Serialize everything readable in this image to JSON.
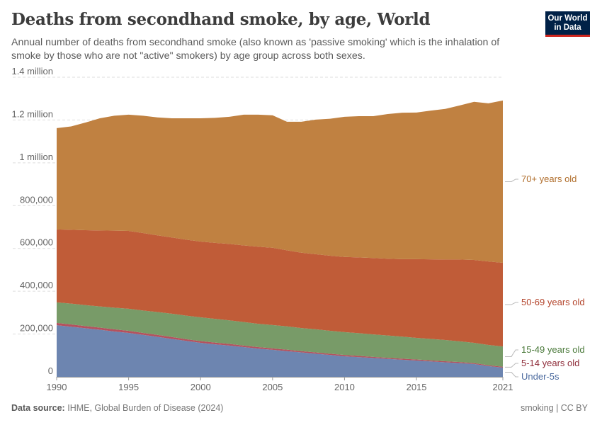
{
  "header": {
    "title": "Deaths from secondhand smoke, by age, World",
    "subtitle": "Annual number of deaths from secondhand smoke (also known as 'passive smoking' which is the inhalation of smoke by those who are not \"active\" smokers) by age group across both sexes.",
    "logo_line1": "Our World",
    "logo_line2": "in Data"
  },
  "footer": {
    "source_label": "Data source:",
    "source_text": "IHME, Global Burden of Disease (2024)",
    "right_text": "smoking | CC BY"
  },
  "chart_data": {
    "type": "area",
    "stacked": true,
    "title": "Deaths from secondhand smoke, by age, World",
    "xlabel": "",
    "ylabel": "",
    "xlim": [
      1990,
      2021
    ],
    "ylim": [
      0,
      1400000
    ],
    "grid": true,
    "legend": "right (inline labels)",
    "x_ticks": [
      "1990",
      "1995",
      "2000",
      "2005",
      "2010",
      "2015",
      "2021"
    ],
    "x_tick_values": [
      1990,
      1995,
      2000,
      2005,
      2010,
      2015,
      2021
    ],
    "y_ticks": [
      "0",
      "200,000",
      "400,000",
      "600,000",
      "800,000",
      "1 million",
      "1.2 million",
      "1.4 million"
    ],
    "y_tick_values": [
      0,
      200000,
      400000,
      600000,
      800000,
      1000000,
      1200000,
      1400000
    ],
    "x": [
      1990,
      1991,
      1992,
      1993,
      1994,
      1995,
      1996,
      1997,
      1998,
      1999,
      2000,
      2001,
      2002,
      2003,
      2004,
      2005,
      2006,
      2007,
      2008,
      2009,
      2010,
      2011,
      2012,
      2013,
      2014,
      2015,
      2016,
      2017,
      2018,
      2019,
      2020,
      2021
    ],
    "series": [
      {
        "name": "Under-5s",
        "color": "#6d85b0",
        "label_color": "#4b6a9e",
        "values": [
          241000,
          234000,
          227000,
          220000,
          212000,
          205000,
          196000,
          187000,
          177000,
          168000,
          159000,
          152000,
          146000,
          139000,
          132000,
          126000,
          120000,
          114000,
          108000,
          102000,
          96000,
          92000,
          88000,
          84000,
          80000,
          76000,
          72000,
          68000,
          64000,
          60000,
          50000,
          43000
        ]
      },
      {
        "name": "5-14 years old",
        "color": "#b4515e",
        "label_color": "#8e2b38",
        "values": [
          11000,
          11000,
          10000,
          10000,
          10000,
          10000,
          9000,
          9000,
          9000,
          8000,
          8000,
          8000,
          8000,
          7000,
          7000,
          7000,
          7000,
          6000,
          6000,
          6000,
          6000,
          6000,
          5000,
          5000,
          5000,
          5000,
          5000,
          5000,
          5000,
          4000,
          4000,
          4000
        ]
      },
      {
        "name": "15-49 years old",
        "color": "#789b68",
        "label_color": "#4b7a3b",
        "values": [
          96000,
          97000,
          98000,
          99000,
          101000,
          103000,
          105000,
          107000,
          109000,
          110000,
          111000,
          111000,
          110000,
          110000,
          109000,
          109000,
          109000,
          108000,
          108000,
          107000,
          107000,
          106000,
          105000,
          104000,
          103000,
          101000,
          100000,
          99000,
          97000,
          95000,
          95000,
          95000
        ]
      },
      {
        "name": "50-69 years old",
        "color": "#c05c38",
        "label_color": "#b3432a",
        "values": [
          341000,
          345000,
          350000,
          355000,
          360000,
          364000,
          362000,
          358000,
          356000,
          355000,
          354000,
          355000,
          357000,
          358000,
          360000,
          361000,
          355000,
          352000,
          351000,
          351000,
          351000,
          354000,
          357000,
          359000,
          362000,
          368000,
          372000,
          376000,
          382000,
          387000,
          390000,
          391000
        ]
      },
      {
        "name": "70+ years old",
        "color": "#c08141",
        "label_color": "#b06e2c",
        "values": [
          473000,
          483000,
          503000,
          524000,
          537000,
          543000,
          548000,
          551000,
          557000,
          567000,
          576000,
          584000,
          594000,
          611000,
          617000,
          619000,
          601000,
          612000,
          629000,
          640000,
          655000,
          660000,
          663000,
          676000,
          684000,
          685000,
          695000,
          704000,
          720000,
          739000,
          739000,
          758000
        ]
      }
    ]
  }
}
